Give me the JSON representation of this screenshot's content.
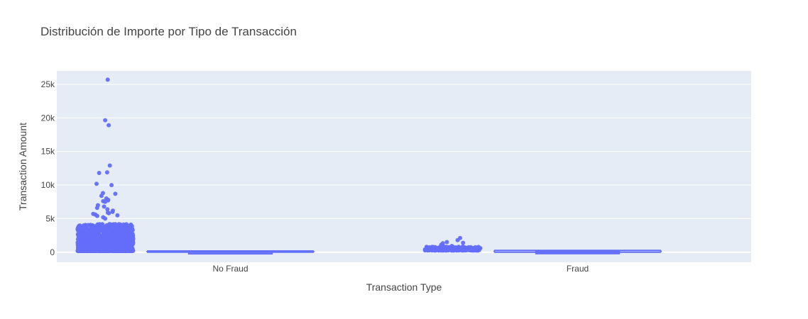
{
  "chart_data": {
    "type": "box",
    "title": "Distribución de Importe por Tipo de Transacción",
    "xlabel": "Transaction Type",
    "ylabel": "Transaction Amount",
    "ylim": [
      -1500,
      27000
    ],
    "yticks": [
      0,
      5000,
      10000,
      15000,
      20000,
      25000
    ],
    "ytick_labels": [
      "0",
      "5k",
      "10k",
      "15k",
      "20k",
      "25k"
    ],
    "grid": true,
    "legend": "none",
    "categories": [
      "No Fraud",
      "Fraud"
    ],
    "colors": {
      "marker": "#636efa",
      "plot_bg": "#e5ecf6",
      "grid": "#ffffff",
      "text": "#444444"
    },
    "boxes": [
      {
        "category": "No Fraud",
        "lower_fence": 0,
        "q1": 5.6,
        "median": 22,
        "q3": 77.2,
        "upper_fence": 184.5,
        "max": 25691,
        "notable_outliers": [
          25691,
          19656,
          18910,
          12910,
          11900,
          11800,
          10200,
          10000,
          8800,
          8700,
          8400,
          8000,
          7800,
          7700,
          7600,
          7500,
          7000,
          6800,
          6600,
          6400,
          6200,
          6000,
          5900,
          5800,
          5700,
          5600,
          5500,
          5400,
          5200,
          5000
        ]
      },
      {
        "category": "Fraud",
        "lower_fence": 0,
        "q1": 1,
        "median": 9.25,
        "q3": 105.9,
        "upper_fence": 262,
        "max": 2125,
        "notable_outliers": [
          2125,
          1809,
          1504,
          1402,
          1335,
          1096,
          1000,
          925,
          829,
          776,
          720,
          680,
          630,
          590,
          560,
          520,
          490,
          460,
          430,
          400,
          370,
          340,
          310,
          290,
          270
        ]
      }
    ]
  }
}
